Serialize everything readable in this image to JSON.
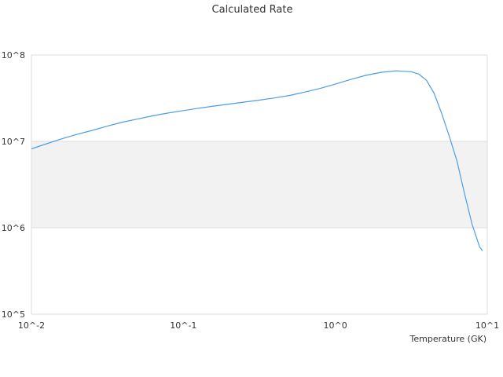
{
  "chart_data": {
    "type": "line",
    "title": "Calculated Rate",
    "xlabel": "Temperature (GK)",
    "ylabel": "",
    "x_scale": "log",
    "y_scale": "log",
    "xlim": [
      0.01,
      10
    ],
    "ylim": [
      100000,
      100000000
    ],
    "x_ticks": [
      {
        "value": 0.01,
        "label": "10^-2"
      },
      {
        "value": 0.1,
        "label": "10^-1"
      },
      {
        "value": 1,
        "label": "10^0"
      },
      {
        "value": 10,
        "label": "10^1"
      }
    ],
    "y_ticks": [
      {
        "value": 100000,
        "label": "10^5"
      },
      {
        "value": 1000000,
        "label": "10^6"
      },
      {
        "value": 10000000,
        "label": "10^7"
      },
      {
        "value": 100000000,
        "label": "10^8"
      }
    ],
    "grid": true,
    "line_color": "#4a9ee6",
    "band_color": "#f2f2f2",
    "series": [
      {
        "x": [
          0.01,
          0.0126,
          0.0158,
          0.02,
          0.0251,
          0.0316,
          0.0398,
          0.0501,
          0.0631,
          0.0794,
          0.1,
          0.126,
          0.158,
          0.2,
          0.251,
          0.316,
          0.398,
          0.501,
          0.631,
          0.794,
          1.0,
          1.26,
          1.58,
          2.0,
          2.51,
          3.16,
          3.55,
          3.98,
          4.47,
          5.01,
          5.62,
          6.31,
          7.08,
          7.94,
          8.91,
          9.3
        ],
        "y": [
          8200000.0,
          9400000.0,
          10700000.0,
          12100000.0,
          13400000.0,
          15000000.0,
          16700000.0,
          18200000.0,
          19800000.0,
          21300000.0,
          22700000.0,
          24200000.0,
          25600000.0,
          27000000.0,
          28500000.0,
          30000000.0,
          31800000.0,
          34000000.0,
          37200000.0,
          41000000.0,
          46000000.0,
          52000000.0,
          58000000.0,
          63000000.0,
          65500000.0,
          64000000.0,
          60000000.0,
          51000000.0,
          36000000.0,
          21000000.0,
          11500000.0,
          6000000.0,
          2500000.0,
          1100000.0,
          600000.0,
          540000.0
        ]
      }
    ]
  }
}
